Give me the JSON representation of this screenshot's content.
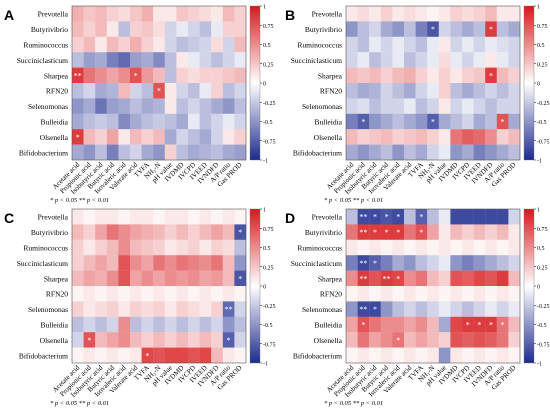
{
  "figure": {
    "rows": [
      "Prevotella",
      "Butyrivibrio",
      "Ruminococcus",
      "Succiniclasticum",
      "Sharpea",
      "RFN20",
      "Selenomonas",
      "Bulleidia",
      "Olsenella",
      "Bifidobacterium"
    ],
    "columns": [
      "Acetate acid",
      "Propionic acid",
      "Isobutyric acid",
      "Butyric acid",
      "Isovaleric acid",
      "Valerate acid",
      "TVFA",
      "NH₃-N",
      "pH value",
      "IVDMD",
      "IVCPD",
      "IVEED",
      "IVNDFD",
      "A/P ratio",
      "Gas PROD"
    ],
    "colorscale": {
      "min": -1,
      "max": 1,
      "ticks": [
        -1,
        -0.75,
        -0.5,
        -0.25,
        0,
        0.25,
        0.5,
        0.75,
        1
      ],
      "tick_labels": [
        "-1",
        "-0.75",
        "-0.5",
        "-0.25",
        "0",
        "0.25",
        "0.5",
        "0.75",
        "1"
      ],
      "low_color": "#1c2a8f",
      "mid_color": "#ffffff",
      "high_color": "#d7191c"
    },
    "significance_note": "* p < 0.05  ** p < 0.01"
  },
  "chart_data": [
    {
      "type": "heatmap",
      "panel": "A",
      "values": [
        [
          0.35,
          0.25,
          0.3,
          0.2,
          0.15,
          0.25,
          0.35,
          0.1,
          0.1,
          0.25,
          0.2,
          0.15,
          0.1,
          0.3,
          0.2
        ],
        [
          0.3,
          0.2,
          0.3,
          0.1,
          -0.3,
          0.2,
          0.25,
          0.15,
          -0.2,
          -0.1,
          -0.2,
          -0.3,
          -0.1,
          0.2,
          0.2
        ],
        [
          0.2,
          0.3,
          0.1,
          0.3,
          0.2,
          0.35,
          0.2,
          0.1,
          -0.2,
          -0.3,
          -0.25,
          -0.2,
          0.15,
          -0.2,
          0.3
        ],
        [
          -0.3,
          -0.45,
          -0.4,
          -0.6,
          -0.7,
          -0.45,
          -0.4,
          -0.55,
          -0.3,
          0.1,
          -0.1,
          -0.2,
          -0.3,
          -0.2,
          -0.1
        ],
        [
          0.85,
          0.6,
          0.5,
          0.4,
          0.5,
          0.75,
          0.45,
          0.3,
          -0.3,
          0.2,
          0.15,
          0.2,
          0.2,
          0.25,
          0.3
        ],
        [
          -0.3,
          -0.2,
          -0.4,
          -0.35,
          0.3,
          -0.2,
          -0.3,
          0.75,
          0.1,
          -0.2,
          -0.3,
          -0.1,
          0.2,
          -0.3,
          -0.2
        ],
        [
          -0.5,
          -0.4,
          -0.65,
          -0.45,
          -0.4,
          -0.3,
          -0.4,
          -0.35,
          0.1,
          -0.3,
          -0.2,
          -0.3,
          -0.4,
          -0.5,
          -0.3
        ],
        [
          -0.4,
          -0.3,
          -0.25,
          -0.3,
          -0.55,
          -0.4,
          -0.3,
          -0.25,
          -0.3,
          -0.4,
          -0.1,
          -0.3,
          -0.2,
          -0.1,
          -0.2
        ],
        [
          0.85,
          0.3,
          0.2,
          0.4,
          0.1,
          0.3,
          0.2,
          0.3,
          -0.4,
          -0.2,
          -0.3,
          -0.4,
          -0.2,
          0.1,
          0.2
        ],
        [
          -0.4,
          -0.5,
          -0.3,
          -0.6,
          -0.3,
          -0.2,
          -0.4,
          -0.5,
          0.2,
          -0.3,
          -0.4,
          -0.35,
          -0.3,
          -0.4,
          -0.45
        ]
      ],
      "marks": [
        {
          "row": 4,
          "col": 0,
          "label": "**"
        },
        {
          "row": 4,
          "col": 5,
          "label": "*"
        },
        {
          "row": 5,
          "col": 7,
          "label": "*"
        },
        {
          "row": 8,
          "col": 0,
          "label": "*"
        }
      ]
    },
    {
      "type": "heatmap",
      "panel": "B",
      "values": [
        [
          0.1,
          0.15,
          0.1,
          0.2,
          0.1,
          0.15,
          0.1,
          0.05,
          0.1,
          0.2,
          0.15,
          0.2,
          0.3,
          0.1,
          0.1
        ],
        [
          -0.5,
          -0.3,
          -0.2,
          -0.4,
          -0.5,
          -0.3,
          -0.6,
          -0.8,
          -0.2,
          -0.3,
          -0.4,
          -0.3,
          0.85,
          -0.3,
          -0.4
        ],
        [
          -0.2,
          -0.3,
          -0.1,
          -0.2,
          -0.1,
          -0.2,
          -0.3,
          -0.1,
          0.1,
          -0.2,
          -0.1,
          -0.2,
          -0.1,
          -0.15,
          -0.2
        ],
        [
          -0.2,
          -0.1,
          -0.3,
          -0.2,
          -0.1,
          -0.3,
          -0.2,
          -0.1,
          0.15,
          -0.1,
          -0.2,
          -0.1,
          0.1,
          -0.1,
          -0.2
        ],
        [
          0.3,
          0.25,
          0.3,
          0.2,
          0.3,
          0.35,
          0.2,
          0.1,
          0.2,
          0.1,
          0.2,
          0.25,
          0.85,
          0.3,
          0.2
        ],
        [
          -0.3,
          -0.4,
          -0.35,
          -0.2,
          -0.3,
          -0.4,
          -0.2,
          -0.1,
          0.2,
          -0.3,
          -0.4,
          -0.3,
          -0.2,
          -0.3,
          -0.2
        ],
        [
          -0.2,
          -0.15,
          -0.3,
          -0.2,
          -0.2,
          -0.1,
          -0.3,
          -0.2,
          0.1,
          -0.2,
          -0.1,
          -0.2,
          -0.3,
          -0.2,
          -0.2
        ],
        [
          -0.6,
          -0.75,
          -0.5,
          -0.4,
          -0.3,
          -0.4,
          -0.5,
          -0.75,
          -0.4,
          -0.3,
          -0.2,
          -0.4,
          -0.3,
          0.75,
          -0.4
        ],
        [
          0.3,
          0.2,
          0.25,
          0.3,
          0.2,
          0.25,
          0.3,
          0.2,
          0.1,
          0.6,
          0.7,
          0.65,
          0.5,
          0.2,
          0.3
        ],
        [
          -0.4,
          -0.5,
          -0.4,
          -0.3,
          -0.5,
          -0.3,
          -0.4,
          -0.2,
          -0.1,
          -0.5,
          -0.4,
          -0.6,
          -0.5,
          -0.4,
          -0.3
        ]
      ],
      "marks": [
        {
          "row": 1,
          "col": 7,
          "label": "*"
        },
        {
          "row": 1,
          "col": 12,
          "label": "*"
        },
        {
          "row": 4,
          "col": 12,
          "label": "*"
        },
        {
          "row": 7,
          "col": 1,
          "label": "*"
        },
        {
          "row": 7,
          "col": 7,
          "label": "*"
        },
        {
          "row": 7,
          "col": 13,
          "label": "*"
        }
      ]
    },
    {
      "type": "heatmap",
      "panel": "C",
      "values": [
        [
          0.1,
          0.05,
          0.1,
          0.1,
          0.05,
          0.1,
          0.1,
          0.05,
          0.1,
          0.1,
          0.05,
          0.1,
          0.05,
          0.1,
          0.05
        ],
        [
          0.3,
          0.2,
          0.4,
          0.6,
          0.5,
          0.4,
          0.35,
          0.3,
          0.2,
          0.3,
          0.2,
          0.3,
          0.4,
          0.3,
          -0.8
        ],
        [
          0.2,
          0.1,
          0.2,
          0.3,
          0.5,
          0.3,
          0.25,
          0.2,
          0.1,
          0.15,
          0.2,
          0.1,
          0.2,
          0.15,
          -0.3
        ],
        [
          0.2,
          0.3,
          0.4,
          0.3,
          0.75,
          0.5,
          0.4,
          0.6,
          0.5,
          0.6,
          0.55,
          0.5,
          0.6,
          0.3,
          -0.5
        ],
        [
          0.3,
          0.4,
          0.35,
          0.5,
          0.75,
          0.4,
          0.5,
          0.4,
          0.5,
          0.45,
          0.5,
          0.4,
          0.45,
          0.3,
          -0.8
        ],
        [
          0.05,
          0.1,
          0.05,
          0.1,
          0.05,
          0.1,
          0.05,
          0.1,
          0.05,
          0.1,
          0.05,
          0.1,
          0.05,
          0.1,
          0.05
        ],
        [
          0.2,
          0.1,
          0.15,
          0.2,
          0.1,
          0.2,
          0.15,
          0.2,
          0.1,
          0.2,
          0.15,
          0.1,
          0.2,
          -0.7,
          -0.2
        ],
        [
          -0.3,
          -0.2,
          -0.3,
          -0.2,
          0.5,
          -0.3,
          -0.2,
          -0.3,
          -0.2,
          -0.3,
          -0.2,
          -0.3,
          -0.2,
          -0.5,
          -0.3
        ],
        [
          -0.2,
          0.75,
          0.3,
          0.4,
          0.5,
          0.3,
          0.2,
          0.3,
          0.2,
          0.3,
          0.2,
          0.3,
          0.2,
          -0.75,
          -0.2
        ],
        [
          0.05,
          0.1,
          0.05,
          0.1,
          0.05,
          0.1,
          0.8,
          0.75,
          0.8,
          0.8,
          0.75,
          0.8,
          0.3,
          0.1,
          0.05
        ]
      ],
      "marks": [
        {
          "row": 1,
          "col": 14,
          "label": "*"
        },
        {
          "row": 4,
          "col": 14,
          "label": "*"
        },
        {
          "row": 6,
          "col": 13,
          "label": "**"
        },
        {
          "row": 8,
          "col": 1,
          "label": "*"
        },
        {
          "row": 8,
          "col": 13,
          "label": "*"
        },
        {
          "row": 9,
          "col": 6,
          "label": "*"
        }
      ]
    },
    {
      "type": "heatmap",
      "panel": "D",
      "values": [
        [
          -0.3,
          -0.85,
          -0.85,
          -0.8,
          -0.85,
          -0.3,
          -0.75,
          -0.3,
          -0.1,
          -0.85,
          -0.85,
          -0.85,
          -0.85,
          -0.85,
          -0.2
        ],
        [
          0.6,
          0.85,
          0.85,
          0.85,
          0.85,
          0.6,
          0.75,
          0.4,
          0.1,
          0.3,
          0.2,
          0.3,
          0.2,
          0.3,
          0.1
        ],
        [
          0.1,
          0.05,
          0.1,
          0.05,
          0.1,
          0.05,
          0.1,
          0.05,
          0.1,
          0.05,
          0.1,
          0.05,
          0.1,
          0.05,
          0.1
        ],
        [
          -0.6,
          -0.85,
          -0.75,
          -0.6,
          -0.4,
          -0.5,
          -0.3,
          -0.2,
          -0.1,
          -0.5,
          -0.6,
          -0.5,
          -0.4,
          -0.3,
          -0.2
        ],
        [
          0.5,
          0.85,
          0.75,
          0.85,
          0.8,
          0.5,
          0.6,
          0.3,
          0.2,
          0.75,
          0.7,
          0.8,
          0.75,
          0.85,
          0.3
        ],
        [
          0.05,
          0.1,
          0.05,
          0.1,
          0.05,
          0.1,
          0.05,
          0.1,
          0.05,
          0.1,
          0.05,
          0.1,
          0.05,
          0.1,
          0.05
        ],
        [
          -0.5,
          -0.85,
          -0.85,
          -0.5,
          -0.3,
          -0.2,
          -0.3,
          -0.2,
          -0.1,
          -0.2,
          -0.3,
          -0.2,
          -0.1,
          -0.2,
          -0.1
        ],
        [
          0.4,
          0.75,
          0.6,
          0.5,
          0.5,
          0.4,
          0.5,
          0.3,
          -0.4,
          0.8,
          0.85,
          0.85,
          0.85,
          0.6,
          0.3
        ],
        [
          0.3,
          0.6,
          0.4,
          0.5,
          0.6,
          0.3,
          0.4,
          0.3,
          0.2,
          0.75,
          0.7,
          0.75,
          0.7,
          0.6,
          0.2
        ],
        [
          0.05,
          0.1,
          0.05,
          0.1,
          0.05,
          0.1,
          0.05,
          0.1,
          -0.5,
          0.1,
          0.05,
          0.1,
          0.05,
          0.1,
          0.05
        ]
      ],
      "marks": [
        {
          "row": 0,
          "col": 1,
          "label": "**"
        },
        {
          "row": 0,
          "col": 2,
          "label": "*"
        },
        {
          "row": 0,
          "col": 3,
          "label": "*"
        },
        {
          "row": 0,
          "col": 4,
          "label": "*"
        },
        {
          "row": 0,
          "col": 6,
          "label": "*"
        },
        {
          "row": 1,
          "col": 1,
          "label": "**"
        },
        {
          "row": 1,
          "col": 2,
          "label": "*"
        },
        {
          "row": 1,
          "col": 3,
          "label": "*"
        },
        {
          "row": 1,
          "col": 4,
          "label": "*"
        },
        {
          "row": 1,
          "col": 6,
          "label": "*"
        },
        {
          "row": 3,
          "col": 1,
          "label": "**"
        },
        {
          "row": 3,
          "col": 2,
          "label": "*"
        },
        {
          "row": 4,
          "col": 1,
          "label": "**"
        },
        {
          "row": 4,
          "col": 3,
          "label": "**"
        },
        {
          "row": 4,
          "col": 4,
          "label": "*"
        },
        {
          "row": 6,
          "col": 1,
          "label": "**"
        },
        {
          "row": 6,
          "col": 2,
          "label": "*"
        },
        {
          "row": 7,
          "col": 1,
          "label": "*"
        },
        {
          "row": 7,
          "col": 10,
          "label": "*"
        },
        {
          "row": 7,
          "col": 11,
          "label": "*"
        },
        {
          "row": 7,
          "col": 12,
          "label": "*"
        },
        {
          "row": 7,
          "col": 13,
          "label": "*"
        },
        {
          "row": 8,
          "col": 4,
          "label": "*"
        }
      ]
    }
  ]
}
